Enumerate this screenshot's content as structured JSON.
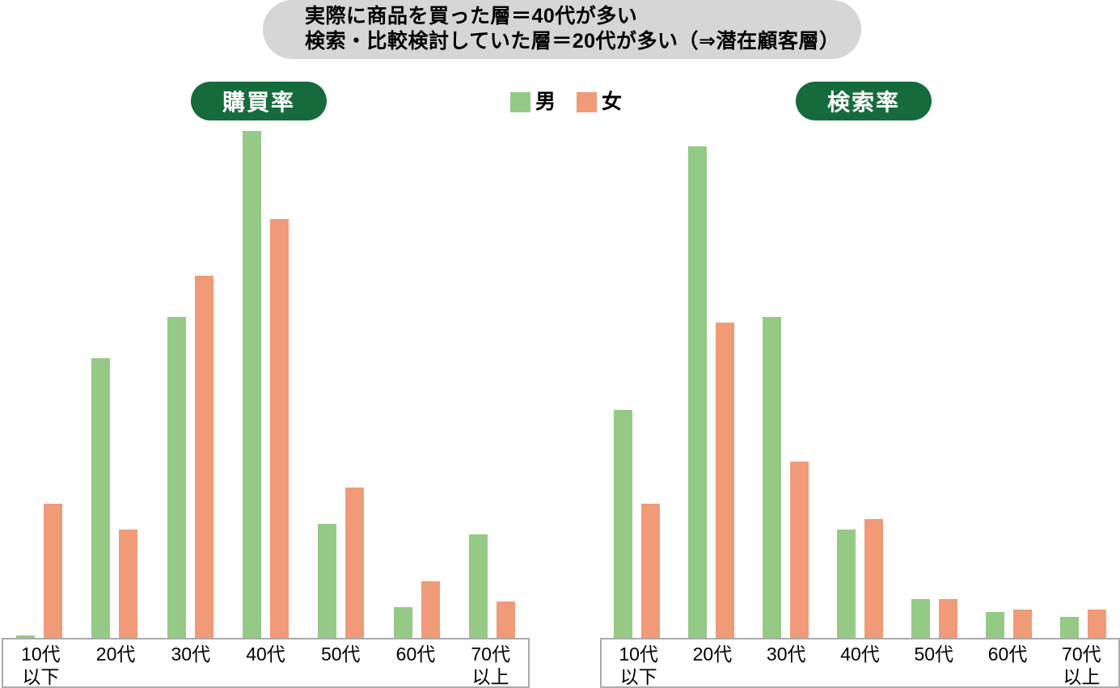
{
  "banner": {
    "line1": "実際に商品を買った層＝40代が多い",
    "line2": "検索・比較検討していた層＝20代が多い（⇒潜在顧客層）"
  },
  "legend": {
    "male": "男",
    "female": "女"
  },
  "colors": {
    "male_bar": "#94CA85",
    "female_bar": "#F19A77",
    "title_badge_bg": "#156B3C",
    "title_badge_text": "#FFFFFF",
    "banner_bg": "#D6D6D6",
    "axis_box_border": "#ABABAB",
    "text": "#000000"
  },
  "chart_data": [
    {
      "type": "bar",
      "title": "購買率",
      "categories": [
        "10代\n以下",
        "20代",
        "30代",
        "40代",
        "50代",
        "60代",
        "70代\n以上"
      ],
      "series": [
        {
          "name": "男",
          "color": "#94CA85",
          "values": [
            0.5,
            54,
            62,
            98,
            22,
            6,
            20
          ]
        },
        {
          "name": "女",
          "color": "#F19A77",
          "values": [
            26,
            21,
            70,
            81,
            29,
            11,
            7
          ]
        }
      ],
      "xlabel": "",
      "ylabel": "",
      "ylim": [
        0,
        100
      ],
      "grid": false,
      "axis_values_shown": false,
      "note": "values are relative heights (no numeric axis shown in image)"
    },
    {
      "type": "bar",
      "title": "検索率",
      "categories": [
        "10代\n以下",
        "20代",
        "30代",
        "40代",
        "50代",
        "60代",
        "70代\n以上"
      ],
      "series": [
        {
          "name": "男",
          "color": "#94CA85",
          "values": [
            44,
            95,
            62,
            21,
            7.5,
            5,
            4
          ]
        },
        {
          "name": "女",
          "color": "#F19A77",
          "values": [
            26,
            61,
            34,
            23,
            7.5,
            5.5,
            5.5
          ]
        }
      ],
      "xlabel": "",
      "ylabel": "",
      "ylim": [
        0,
        100
      ],
      "grid": false,
      "axis_values_shown": false,
      "note": "values are relative heights (no numeric axis shown in image)"
    }
  ]
}
